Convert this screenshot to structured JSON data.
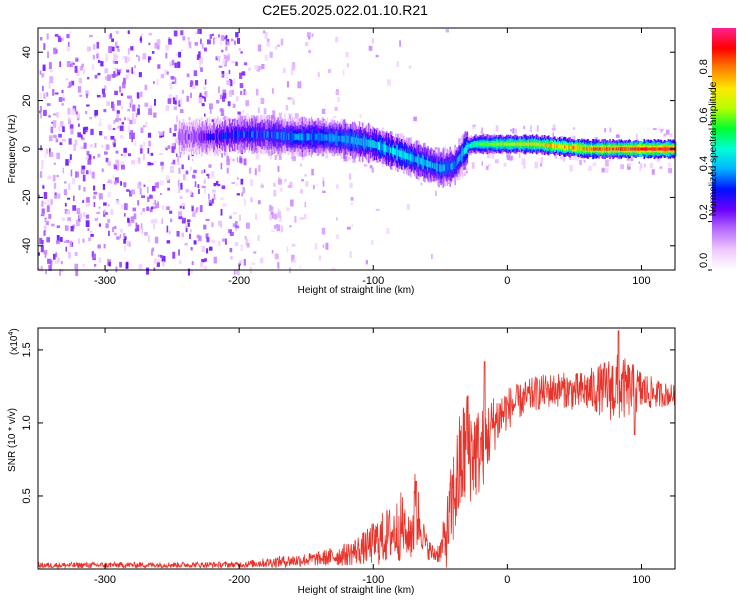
{
  "title": "C2E5.2025.022.01.10.R21",
  "chart_data": [
    {
      "type": "heatmap",
      "name": "spectrogram",
      "xlabel": "Height of straight line (km)",
      "ylabel": "Frequency (Hz)",
      "xlim": [
        -350,
        125
      ],
      "ylim": [
        -50,
        50
      ],
      "x_ticks": [
        -300,
        -200,
        -100,
        0,
        100
      ],
      "y_ticks": [
        -40,
        -20,
        0,
        20,
        40
      ],
      "grid": false,
      "colorbar": {
        "label": "Normalized spectral amplitude",
        "range": [
          0,
          1
        ],
        "ticks": [
          "0.0",
          "0.2",
          "0.4",
          "0.6",
          "0.8"
        ],
        "colors": [
          "#ffffff",
          "#f0c8ff",
          "#b86cff",
          "#6a00ff",
          "#0010ff",
          "#00b4ff",
          "#00ffd8",
          "#00ff30",
          "#b4ff00",
          "#ffe800",
          "#ff8000",
          "#ff0000",
          "#ff2090"
        ]
      },
      "ridge_frequency": {
        "x": [
          -240,
          -220,
          -200,
          -180,
          -160,
          -140,
          -120,
          -100,
          -90,
          -80,
          -70,
          -60,
          -50,
          -40,
          -35,
          -30,
          -25,
          -20,
          -10,
          0,
          20,
          40,
          60,
          80,
          100,
          125
        ],
        "y": [
          5,
          5,
          6,
          6,
          5,
          5,
          4,
          2,
          0,
          -2,
          -4,
          -6,
          -8,
          -7,
          -3,
          1,
          2,
          2,
          2,
          2,
          2,
          1,
          0,
          0,
          0,
          0
        ]
      },
      "ridge_amplitude": {
        "x": [
          -240,
          -200,
          -150,
          -100,
          -60,
          -40,
          -30,
          -20,
          0,
          40,
          80,
          125
        ],
        "y": [
          0.2,
          0.35,
          0.4,
          0.45,
          0.45,
          0.4,
          0.5,
          0.6,
          0.7,
          0.8,
          0.9,
          0.95
        ]
      },
      "noise_floor_extent_x": [
        -350,
        -40
      ]
    },
    {
      "type": "line",
      "name": "snr",
      "xlabel": "Height of straight line (km)",
      "ylabel": "SNR (10 * v/v)",
      "scale_label": "(x10",
      "scale_exponent": "4",
      "xlim": [
        -350,
        125
      ],
      "ylim": [
        0,
        16500
      ],
      "x_ticks": [
        -300,
        -200,
        -100,
        0,
        100
      ],
      "y_tick_values": [
        5000,
        10000,
        15000
      ],
      "y_tick_labels": [
        "0.5",
        "1.0",
        "1.5"
      ],
      "grid": false,
      "series": [
        {
          "color": "#e8332a",
          "envelope_x": [
            -350,
            -200,
            -170,
            -140,
            -120,
            -105,
            -95,
            -85,
            -78,
            -75,
            -72,
            -68,
            -65,
            -60,
            -55,
            -50,
            -45,
            -40,
            -35,
            -30,
            -25,
            -20,
            -15,
            -10,
            -5,
            0,
            10,
            20,
            30,
            40,
            50,
            60,
            70,
            80,
            90,
            100,
            110,
            125
          ],
          "envelope_mean": [
            250,
            300,
            500,
            700,
            1000,
            1500,
            2000,
            2500,
            3000,
            2000,
            2500,
            4000,
            3000,
            1500,
            1000,
            1200,
            2500,
            5000,
            7000,
            8500,
            8000,
            8000,
            9000,
            10000,
            10500,
            11000,
            11500,
            12000,
            12200,
            12300,
            12100,
            12200,
            12300,
            12400,
            12300,
            12200,
            12000,
            11900
          ],
          "envelope_spread": [
            200,
            200,
            400,
            500,
            800,
            1200,
            1800,
            2000,
            2500,
            1000,
            2000,
            3500,
            1500,
            800,
            600,
            800,
            2500,
            3500,
            4000,
            4000,
            3500,
            3000,
            2500,
            2000,
            1800,
            1500,
            1200,
            1200,
            1200,
            1200,
            1300,
            1500,
            1800,
            2500,
            2000,
            1500,
            1000,
            700
          ],
          "peaks": [
            {
              "x": -17,
              "y": 14200
            },
            {
              "x": -30,
              "y": 11800
            },
            {
              "x": -68,
              "y": 6000
            },
            {
              "x": 83,
              "y": 16300
            },
            {
              "x": 95,
              "y": 9200
            }
          ]
        }
      ]
    }
  ]
}
